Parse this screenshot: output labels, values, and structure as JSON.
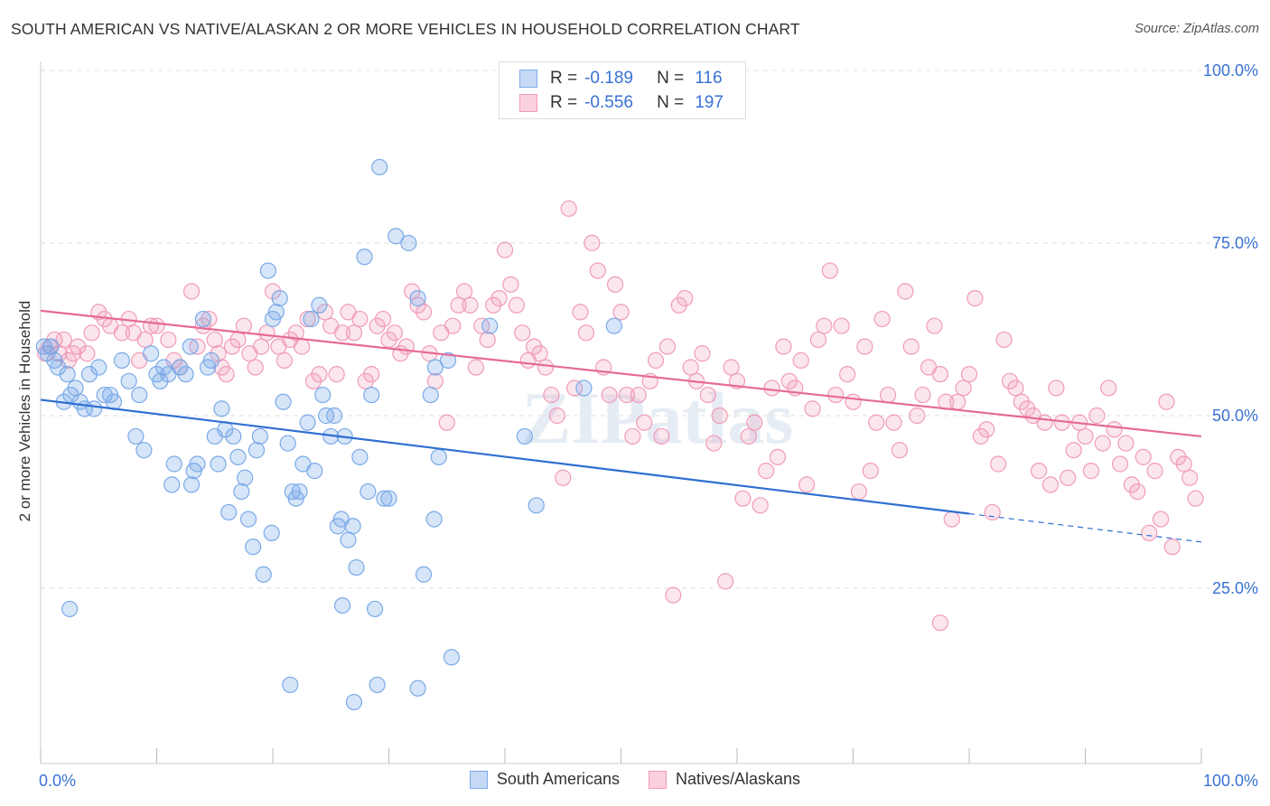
{
  "title": "SOUTH AMERICAN VS NATIVE/ALASKAN 2 OR MORE VEHICLES IN HOUSEHOLD CORRELATION CHART",
  "source": "Source: ZipAtlas.com",
  "watermark": "ZIPatlas",
  "colors": {
    "blue": "#7aaae8",
    "blue_line": "#2f6fd1",
    "pink": "#f19bb7",
    "pink_line": "#e56a95",
    "axis_text": "#3a72d4"
  },
  "legend_top": {
    "rows": [
      {
        "r_label": "R =",
        "r_value": "-0.189",
        "n_label": "N =",
        "n_value": "116"
      },
      {
        "r_label": "R =",
        "r_value": "-0.556",
        "n_label": "N =",
        "n_value": "197"
      }
    ]
  },
  "chart_data": {
    "type": "scatter",
    "title": "SOUTH AMERICAN VS NATIVE/ALASKAN 2 OR MORE VEHICLES IN HOUSEHOLD CORRELATION CHART",
    "xlabel": "",
    "ylabel": "2 or more Vehicles in Household",
    "xlim": [
      0,
      100
    ],
    "ylim": [
      0,
      105
    ],
    "x_tick_labels": [
      "0.0%",
      "100.0%"
    ],
    "y_ticks": [
      25,
      50,
      75,
      100
    ],
    "y_tick_labels": [
      "25.0%",
      "50.0%",
      "75.0%",
      "100.0%"
    ],
    "grid": true,
    "legend_position": "bottom",
    "series": [
      {
        "name": "South Americans",
        "color": "#7aaae8",
        "trend": {
          "x": [
            0,
            80
          ],
          "y": [
            52.3,
            35.8
          ],
          "dashed_extension_to": [
            100,
            31.7
          ]
        },
        "points": [
          [
            0.3,
            60
          ],
          [
            0.6,
            59
          ],
          [
            0.9,
            60
          ],
          [
            1.2,
            58
          ],
          [
            1.5,
            57
          ],
          [
            2,
            52
          ],
          [
            2.3,
            56
          ],
          [
            2.6,
            53
          ],
          [
            3,
            54
          ],
          [
            3.4,
            52
          ],
          [
            3.8,
            51
          ],
          [
            4.2,
            56
          ],
          [
            4.6,
            51
          ],
          [
            5,
            57
          ],
          [
            5.5,
            53
          ],
          [
            6,
            53
          ],
          [
            6.3,
            52
          ],
          [
            7,
            58
          ],
          [
            7.6,
            55
          ],
          [
            8.2,
            47
          ],
          [
            8.5,
            53
          ],
          [
            8.9,
            45
          ],
          [
            9.5,
            59
          ],
          [
            10,
            56
          ],
          [
            10.3,
            55
          ],
          [
            10.6,
            57
          ],
          [
            11,
            56
          ],
          [
            11.3,
            40
          ],
          [
            11.5,
            43
          ],
          [
            12,
            57
          ],
          [
            12.5,
            56
          ],
          [
            12.9,
            60
          ],
          [
            13,
            40
          ],
          [
            13.2,
            42
          ],
          [
            13.5,
            43
          ],
          [
            14,
            64
          ],
          [
            14.4,
            57
          ],
          [
            14.7,
            58
          ],
          [
            15,
            47
          ],
          [
            15.3,
            43
          ],
          [
            15.6,
            51
          ],
          [
            15.9,
            48
          ],
          [
            16.2,
            36
          ],
          [
            16.6,
            47
          ],
          [
            17,
            44
          ],
          [
            17.3,
            39
          ],
          [
            17.6,
            41
          ],
          [
            17.9,
            35
          ],
          [
            18.3,
            31
          ],
          [
            18.6,
            45
          ],
          [
            18.9,
            47
          ],
          [
            19.2,
            27
          ],
          [
            19.6,
            71
          ],
          [
            19.9,
            33
          ],
          [
            20,
            64
          ],
          [
            20.3,
            65
          ],
          [
            20.6,
            67
          ],
          [
            20.9,
            52
          ],
          [
            21.3,
            46
          ],
          [
            21.7,
            39
          ],
          [
            22,
            38
          ],
          [
            22.3,
            39
          ],
          [
            22.6,
            43
          ],
          [
            23,
            49
          ],
          [
            23.3,
            64
          ],
          [
            23.6,
            42
          ],
          [
            24,
            66
          ],
          [
            24.3,
            53
          ],
          [
            24.6,
            50
          ],
          [
            25,
            47
          ],
          [
            25.3,
            50
          ],
          [
            25.6,
            34
          ],
          [
            25.9,
            35
          ],
          [
            26.2,
            47
          ],
          [
            26.5,
            32
          ],
          [
            26.9,
            34
          ],
          [
            27.2,
            28
          ],
          [
            27.5,
            44
          ],
          [
            27.9,
            73
          ],
          [
            28.2,
            39
          ],
          [
            28.5,
            53
          ],
          [
            28.8,
            22
          ],
          [
            29.2,
            86
          ],
          [
            29.6,
            38
          ],
          [
            30,
            38
          ],
          [
            30.6,
            76
          ],
          [
            31.7,
            75
          ],
          [
            32.5,
            67
          ],
          [
            33,
            27
          ],
          [
            33.6,
            53
          ],
          [
            33.9,
            35
          ],
          [
            34,
            57
          ],
          [
            34.3,
            44
          ],
          [
            35.1,
            58
          ],
          [
            38.7,
            63
          ],
          [
            41.7,
            47
          ],
          [
            42.7,
            37
          ],
          [
            46.8,
            54
          ],
          [
            49.4,
            63
          ],
          [
            2.5,
            22
          ],
          [
            21.5,
            11
          ],
          [
            27,
            8.5
          ],
          [
            29,
            11
          ],
          [
            32.5,
            10.5
          ],
          [
            35.4,
            15
          ],
          [
            26,
            22.5
          ]
        ]
      },
      {
        "name": "Natives/Alaskans",
        "color": "#f19bb7",
        "trend": {
          "x": [
            0,
            100
          ],
          "y": [
            65.2,
            47
          ]
        },
        "points": [
          [
            0.4,
            59
          ],
          [
            0.8,
            60
          ],
          [
            1.2,
            61
          ],
          [
            1.6,
            59
          ],
          [
            2,
            61
          ],
          [
            2.4,
            58
          ],
          [
            2.8,
            59
          ],
          [
            3.2,
            60
          ],
          [
            4,
            59
          ],
          [
            4.4,
            62
          ],
          [
            5,
            65
          ],
          [
            5.5,
            64
          ],
          [
            6,
            63
          ],
          [
            7,
            62
          ],
          [
            7.6,
            64
          ],
          [
            8,
            62
          ],
          [
            8.5,
            58
          ],
          [
            9,
            61
          ],
          [
            9.5,
            63
          ],
          [
            10,
            63
          ],
          [
            11,
            61
          ],
          [
            11.5,
            58
          ],
          [
            12,
            57
          ],
          [
            13,
            68
          ],
          [
            13.5,
            60
          ],
          [
            14,
            63
          ],
          [
            14.5,
            64
          ],
          [
            15,
            61
          ],
          [
            15.3,
            59
          ],
          [
            15.6,
            57
          ],
          [
            16,
            56
          ],
          [
            16.5,
            60
          ],
          [
            17,
            61
          ],
          [
            17.5,
            63
          ],
          [
            18,
            59
          ],
          [
            18.5,
            57
          ],
          [
            19,
            60
          ],
          [
            19.5,
            62
          ],
          [
            20,
            68
          ],
          [
            20.5,
            60
          ],
          [
            21,
            58
          ],
          [
            21.5,
            61
          ],
          [
            22,
            62
          ],
          [
            22.5,
            60
          ],
          [
            23,
            64
          ],
          [
            23.5,
            55
          ],
          [
            24,
            56
          ],
          [
            24.5,
            65
          ],
          [
            25,
            63
          ],
          [
            25.5,
            56
          ],
          [
            26,
            62
          ],
          [
            26.5,
            65
          ],
          [
            27,
            62
          ],
          [
            27.5,
            64
          ],
          [
            28,
            55
          ],
          [
            28.5,
            56
          ],
          [
            29,
            63
          ],
          [
            29.5,
            64
          ],
          [
            30,
            61
          ],
          [
            30.5,
            62
          ],
          [
            31,
            59
          ],
          [
            31.5,
            60
          ],
          [
            32,
            68
          ],
          [
            32.5,
            66
          ],
          [
            33,
            65
          ],
          [
            33.5,
            59
          ],
          [
            34,
            55
          ],
          [
            34.5,
            62
          ],
          [
            35,
            49
          ],
          [
            35.5,
            63
          ],
          [
            36,
            66
          ],
          [
            36.5,
            68
          ],
          [
            37,
            66
          ],
          [
            37.5,
            57
          ],
          [
            38,
            63
          ],
          [
            38.5,
            61
          ],
          [
            39,
            66
          ],
          [
            39.5,
            67
          ],
          [
            40,
            74
          ],
          [
            40.5,
            69
          ],
          [
            41,
            66
          ],
          [
            41.5,
            62
          ],
          [
            42,
            58
          ],
          [
            42.5,
            60
          ],
          [
            43,
            59
          ],
          [
            43.5,
            57
          ],
          [
            44,
            53
          ],
          [
            44.5,
            50
          ],
          [
            45,
            41
          ],
          [
            45.5,
            80
          ],
          [
            46,
            54
          ],
          [
            46.5,
            65
          ],
          [
            47,
            62
          ],
          [
            47.5,
            75
          ],
          [
            48,
            71
          ],
          [
            48.5,
            57
          ],
          [
            49,
            53
          ],
          [
            49.5,
            69
          ],
          [
            50,
            65
          ],
          [
            50.5,
            53
          ],
          [
            51,
            47
          ],
          [
            51.5,
            53
          ],
          [
            52,
            49
          ],
          [
            52.5,
            55
          ],
          [
            53,
            58
          ],
          [
            53.5,
            47
          ],
          [
            54,
            60
          ],
          [
            54.5,
            24
          ],
          [
            55,
            66
          ],
          [
            55.5,
            67
          ],
          [
            56,
            57
          ],
          [
            56.5,
            55
          ],
          [
            57,
            59
          ],
          [
            57.5,
            53
          ],
          [
            58,
            46
          ],
          [
            58.5,
            50
          ],
          [
            59,
            26
          ],
          [
            59.5,
            57
          ],
          [
            60,
            55
          ],
          [
            60.5,
            38
          ],
          [
            61,
            47
          ],
          [
            61.5,
            49
          ],
          [
            62,
            37
          ],
          [
            62.5,
            42
          ],
          [
            63,
            54
          ],
          [
            63.5,
            44
          ],
          [
            64,
            60
          ],
          [
            64.5,
            55
          ],
          [
            65,
            54
          ],
          [
            65.5,
            58
          ],
          [
            66,
            40
          ],
          [
            66.5,
            51
          ],
          [
            67,
            61
          ],
          [
            67.5,
            63
          ],
          [
            68,
            71
          ],
          [
            68.5,
            53
          ],
          [
            69,
            63
          ],
          [
            69.5,
            56
          ],
          [
            70,
            52
          ],
          [
            70.5,
            39
          ],
          [
            71,
            60
          ],
          [
            71.5,
            42
          ],
          [
            72,
            49
          ],
          [
            72.5,
            64
          ],
          [
            73,
            53
          ],
          [
            73.5,
            49
          ],
          [
            74,
            45
          ],
          [
            74.5,
            68
          ],
          [
            75,
            60
          ],
          [
            75.5,
            50
          ],
          [
            76,
            53
          ],
          [
            76.5,
            57
          ],
          [
            77,
            63
          ],
          [
            77.5,
            56
          ],
          [
            78,
            52
          ],
          [
            78.5,
            35
          ],
          [
            79,
            52
          ],
          [
            79.5,
            54
          ],
          [
            80,
            56
          ],
          [
            80.5,
            67
          ],
          [
            81,
            47
          ],
          [
            81.5,
            48
          ],
          [
            82,
            36
          ],
          [
            82.5,
            43
          ],
          [
            83,
            61
          ],
          [
            83.5,
            55
          ],
          [
            84,
            54
          ],
          [
            84.5,
            52
          ],
          [
            85,
            51
          ],
          [
            85.5,
            50
          ],
          [
            86,
            42
          ],
          [
            86.5,
            49
          ],
          [
            87,
            40
          ],
          [
            87.5,
            54
          ],
          [
            88,
            49
          ],
          [
            88.5,
            41
          ],
          [
            89,
            45
          ],
          [
            89.5,
            49
          ],
          [
            90,
            47
          ],
          [
            90.5,
            42
          ],
          [
            91,
            50
          ],
          [
            91.5,
            46
          ],
          [
            92,
            54
          ],
          [
            92.5,
            48
          ],
          [
            93,
            43
          ],
          [
            93.5,
            46
          ],
          [
            94,
            40
          ],
          [
            94.5,
            39
          ],
          [
            95,
            44
          ],
          [
            95.5,
            33
          ],
          [
            96,
            42
          ],
          [
            96.5,
            35
          ],
          [
            97,
            52
          ],
          [
            97.5,
            31
          ],
          [
            98,
            44
          ],
          [
            98.5,
            43
          ],
          [
            99,
            41
          ],
          [
            99.5,
            38
          ],
          [
            77.5,
            20
          ]
        ]
      }
    ]
  },
  "legend_bottom": {
    "items": [
      {
        "label": "South Americans"
      },
      {
        "label": "Natives/Alaskans"
      }
    ]
  }
}
